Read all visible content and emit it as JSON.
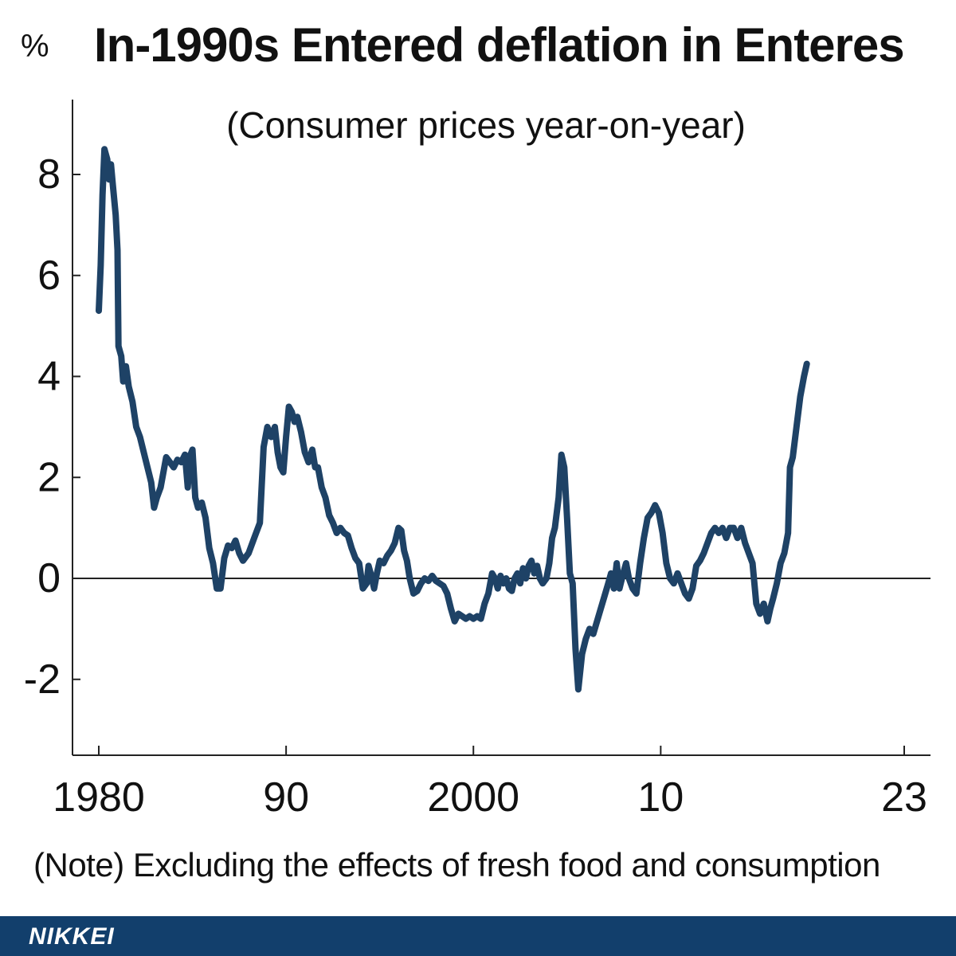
{
  "chart_data": {
    "type": "line",
    "title": "In-1990s Entered deflation in Enteres",
    "subtitle": "(Consumer prices year-on-year)",
    "ylabel": "%",
    "note": "(Note) Excluding the effects of fresh food and consumption",
    "xlim": [
      1979.9,
      2023
    ],
    "ylim": [
      -3.5,
      9.3
    ],
    "xticks": [
      {
        "value": 1980,
        "label": "1980"
      },
      {
        "value": 1990,
        "label": "90"
      },
      {
        "value": 2000,
        "label": "2000"
      },
      {
        "value": 2010,
        "label": "10"
      },
      {
        "value": 2023,
        "label": "23"
      }
    ],
    "yticks": [
      {
        "value": 8,
        "label": "8"
      },
      {
        "value": 6,
        "label": "6"
      },
      {
        "value": 4,
        "label": "4"
      },
      {
        "value": 2,
        "label": "2"
      },
      {
        "value": 0,
        "label": "0"
      },
      {
        "value": -2,
        "label": "-2"
      }
    ],
    "zero_line": true,
    "grid": false,
    "line_color": "#1e4266",
    "series": [
      {
        "name": "",
        "points": [
          [
            1980.0,
            5.3
          ],
          [
            1980.1,
            6.2
          ],
          [
            1980.2,
            7.6
          ],
          [
            1980.3,
            8.5
          ],
          [
            1980.45,
            8.3
          ],
          [
            1980.55,
            7.9
          ],
          [
            1980.65,
            8.2
          ],
          [
            1980.75,
            7.8
          ],
          [
            1980.9,
            7.2
          ],
          [
            1981.0,
            6.5
          ],
          [
            1981.05,
            4.6
          ],
          [
            1981.2,
            4.4
          ],
          [
            1981.3,
            3.9
          ],
          [
            1981.45,
            4.2
          ],
          [
            1981.6,
            3.8
          ],
          [
            1981.8,
            3.5
          ],
          [
            1982.0,
            3.0
          ],
          [
            1982.2,
            2.8
          ],
          [
            1982.4,
            2.5
          ],
          [
            1982.6,
            2.2
          ],
          [
            1982.8,
            1.9
          ],
          [
            1982.95,
            1.4
          ],
          [
            1983.1,
            1.6
          ],
          [
            1983.3,
            1.8
          ],
          [
            1983.45,
            2.1
          ],
          [
            1983.6,
            2.4
          ],
          [
            1983.8,
            2.3
          ],
          [
            1984.0,
            2.2
          ],
          [
            1984.2,
            2.35
          ],
          [
            1984.4,
            2.3
          ],
          [
            1984.6,
            2.45
          ],
          [
            1984.75,
            1.8
          ],
          [
            1984.85,
            2.4
          ],
          [
            1985.0,
            2.55
          ],
          [
            1985.15,
            1.6
          ],
          [
            1985.3,
            1.4
          ],
          [
            1985.5,
            1.5
          ],
          [
            1985.7,
            1.2
          ],
          [
            1985.9,
            0.6
          ],
          [
            1986.1,
            0.3
          ],
          [
            1986.3,
            -0.2
          ],
          [
            1986.5,
            -0.2
          ],
          [
            1986.7,
            0.4
          ],
          [
            1986.9,
            0.65
          ],
          [
            1987.1,
            0.6
          ],
          [
            1987.3,
            0.75
          ],
          [
            1987.5,
            0.5
          ],
          [
            1987.7,
            0.35
          ],
          [
            1988.0,
            0.5
          ],
          [
            1988.3,
            0.8
          ],
          [
            1988.6,
            1.1
          ],
          [
            1988.8,
            2.6
          ],
          [
            1989.0,
            3.0
          ],
          [
            1989.2,
            2.8
          ],
          [
            1989.4,
            3.0
          ],
          [
            1989.55,
            2.5
          ],
          [
            1989.7,
            2.2
          ],
          [
            1989.85,
            2.1
          ],
          [
            1990.0,
            2.8
          ],
          [
            1990.15,
            3.4
          ],
          [
            1990.3,
            3.3
          ],
          [
            1990.45,
            3.1
          ],
          [
            1990.6,
            3.2
          ],
          [
            1990.8,
            2.9
          ],
          [
            1991.0,
            2.5
          ],
          [
            1991.2,
            2.3
          ],
          [
            1991.4,
            2.55
          ],
          [
            1991.55,
            2.2
          ],
          [
            1991.7,
            2.2
          ],
          [
            1991.9,
            1.8
          ],
          [
            1992.1,
            1.6
          ],
          [
            1992.3,
            1.25
          ],
          [
            1992.5,
            1.1
          ],
          [
            1992.7,
            0.9
          ],
          [
            1992.9,
            1.0
          ],
          [
            1993.1,
            0.9
          ],
          [
            1993.3,
            0.85
          ],
          [
            1993.5,
            0.6
          ],
          [
            1993.7,
            0.4
          ],
          [
            1993.9,
            0.3
          ],
          [
            1994.1,
            -0.2
          ],
          [
            1994.3,
            -0.1
          ],
          [
            1994.4,
            0.25
          ],
          [
            1994.55,
            0.05
          ],
          [
            1994.7,
            -0.2
          ],
          [
            1994.85,
            0.1
          ],
          [
            1995.0,
            0.35
          ],
          [
            1995.2,
            0.3
          ],
          [
            1995.4,
            0.45
          ],
          [
            1995.6,
            0.55
          ],
          [
            1995.8,
            0.7
          ],
          [
            1996.0,
            1.0
          ],
          [
            1996.15,
            0.95
          ],
          [
            1996.3,
            0.55
          ],
          [
            1996.45,
            0.35
          ],
          [
            1996.6,
            0.0
          ],
          [
            1996.8,
            -0.3
          ],
          [
            1997.0,
            -0.25
          ],
          [
            1997.2,
            -0.1
          ],
          [
            1997.4,
            0.0
          ],
          [
            1997.6,
            -0.05
          ],
          [
            1997.8,
            0.05
          ],
          [
            1998.0,
            -0.05
          ],
          [
            1998.2,
            -0.1
          ],
          [
            1998.4,
            -0.15
          ],
          [
            1998.6,
            -0.3
          ],
          [
            1998.8,
            -0.6
          ],
          [
            1999.0,
            -0.85
          ],
          [
            1999.2,
            -0.7
          ],
          [
            1999.4,
            -0.75
          ],
          [
            1999.6,
            -0.8
          ],
          [
            1999.8,
            -0.75
          ],
          [
            2000.0,
            -0.8
          ],
          [
            2000.2,
            -0.75
          ],
          [
            2000.4,
            -0.8
          ],
          [
            2000.6,
            -0.5
          ],
          [
            2000.8,
            -0.3
          ],
          [
            2001.0,
            0.1
          ],
          [
            2001.15,
            0.0
          ],
          [
            2001.3,
            -0.2
          ],
          [
            2001.45,
            0.05
          ],
          [
            2001.6,
            -0.1
          ],
          [
            2001.75,
            0.0
          ],
          [
            2001.9,
            -0.2
          ],
          [
            2002.05,
            -0.25
          ],
          [
            2002.2,
            0.0
          ],
          [
            2002.35,
            0.1
          ],
          [
            2002.5,
            -0.1
          ],
          [
            2002.65,
            0.2
          ],
          [
            2002.8,
            0.0
          ],
          [
            2002.95,
            0.25
          ],
          [
            2003.1,
            0.35
          ],
          [
            2003.25,
            0.1
          ],
          [
            2003.4,
            0.25
          ],
          [
            2003.55,
            0.0
          ],
          [
            2003.7,
            -0.1
          ],
          [
            2003.9,
            0.0
          ],
          [
            2004.05,
            0.3
          ],
          [
            2004.2,
            0.8
          ],
          [
            2004.35,
            1.0
          ],
          [
            2004.55,
            1.6
          ],
          [
            2004.7,
            2.45
          ],
          [
            2004.85,
            2.2
          ],
          [
            2005.0,
            1.2
          ],
          [
            2005.15,
            0.1
          ],
          [
            2005.3,
            -0.1
          ],
          [
            2005.45,
            -1.4
          ],
          [
            2005.6,
            -2.2
          ],
          [
            2005.8,
            -1.5
          ],
          [
            2006.0,
            -1.2
          ],
          [
            2006.2,
            -1.0
          ],
          [
            2006.4,
            -1.1
          ],
          [
            2006.6,
            -0.85
          ],
          [
            2006.8,
            -0.6
          ],
          [
            2007.0,
            -0.35
          ],
          [
            2007.2,
            -0.1
          ],
          [
            2007.35,
            0.1
          ],
          [
            2007.5,
            -0.2
          ],
          [
            2007.65,
            0.3
          ],
          [
            2007.8,
            -0.2
          ],
          [
            2008.0,
            0.1
          ],
          [
            2008.15,
            0.3
          ],
          [
            2008.3,
            0.0
          ],
          [
            2008.5,
            -0.2
          ],
          [
            2008.7,
            -0.3
          ],
          [
            2008.9,
            0.3
          ],
          [
            2009.1,
            0.8
          ],
          [
            2009.3,
            1.2
          ],
          [
            2009.5,
            1.3
          ],
          [
            2009.7,
            1.45
          ],
          [
            2009.9,
            1.3
          ],
          [
            2010.1,
            0.9
          ],
          [
            2010.3,
            0.3
          ],
          [
            2010.5,
            0.0
          ],
          [
            2010.7,
            -0.1
          ],
          [
            2010.9,
            0.1
          ],
          [
            2011.1,
            -0.1
          ],
          [
            2011.3,
            -0.3
          ],
          [
            2011.5,
            -0.4
          ],
          [
            2011.7,
            -0.2
          ],
          [
            2011.9,
            0.25
          ],
          [
            2012.1,
            0.35
          ],
          [
            2012.3,
            0.5
          ],
          [
            2012.5,
            0.7
          ],
          [
            2012.7,
            0.9
          ],
          [
            2012.9,
            1.0
          ],
          [
            2013.1,
            0.9
          ],
          [
            2013.3,
            1.0
          ],
          [
            2013.5,
            0.8
          ],
          [
            2013.7,
            1.0
          ],
          [
            2013.9,
            1.0
          ],
          [
            2014.1,
            0.8
          ],
          [
            2014.3,
            1.0
          ],
          [
            2014.5,
            0.7
          ],
          [
            2014.7,
            0.5
          ],
          [
            2014.9,
            0.3
          ],
          [
            2015.1,
            -0.5
          ],
          [
            2015.3,
            -0.7
          ],
          [
            2015.5,
            -0.5
          ],
          [
            2015.7,
            -0.85
          ],
          [
            2015.85,
            -0.6
          ],
          [
            2016.0,
            -0.4
          ],
          [
            2016.2,
            -0.1
          ],
          [
            2016.4,
            0.3
          ],
          [
            2016.6,
            0.5
          ],
          [
            2016.8,
            0.9
          ],
          [
            2016.9,
            2.2
          ],
          [
            2017.05,
            2.4
          ],
          [
            2017.25,
            3.0
          ],
          [
            2017.45,
            3.6
          ],
          [
            2017.65,
            4.0
          ],
          [
            2017.8,
            4.25
          ]
        ]
      }
    ]
  },
  "footer": {
    "brand": "NIKKEI",
    "color": "#123f6c"
  }
}
